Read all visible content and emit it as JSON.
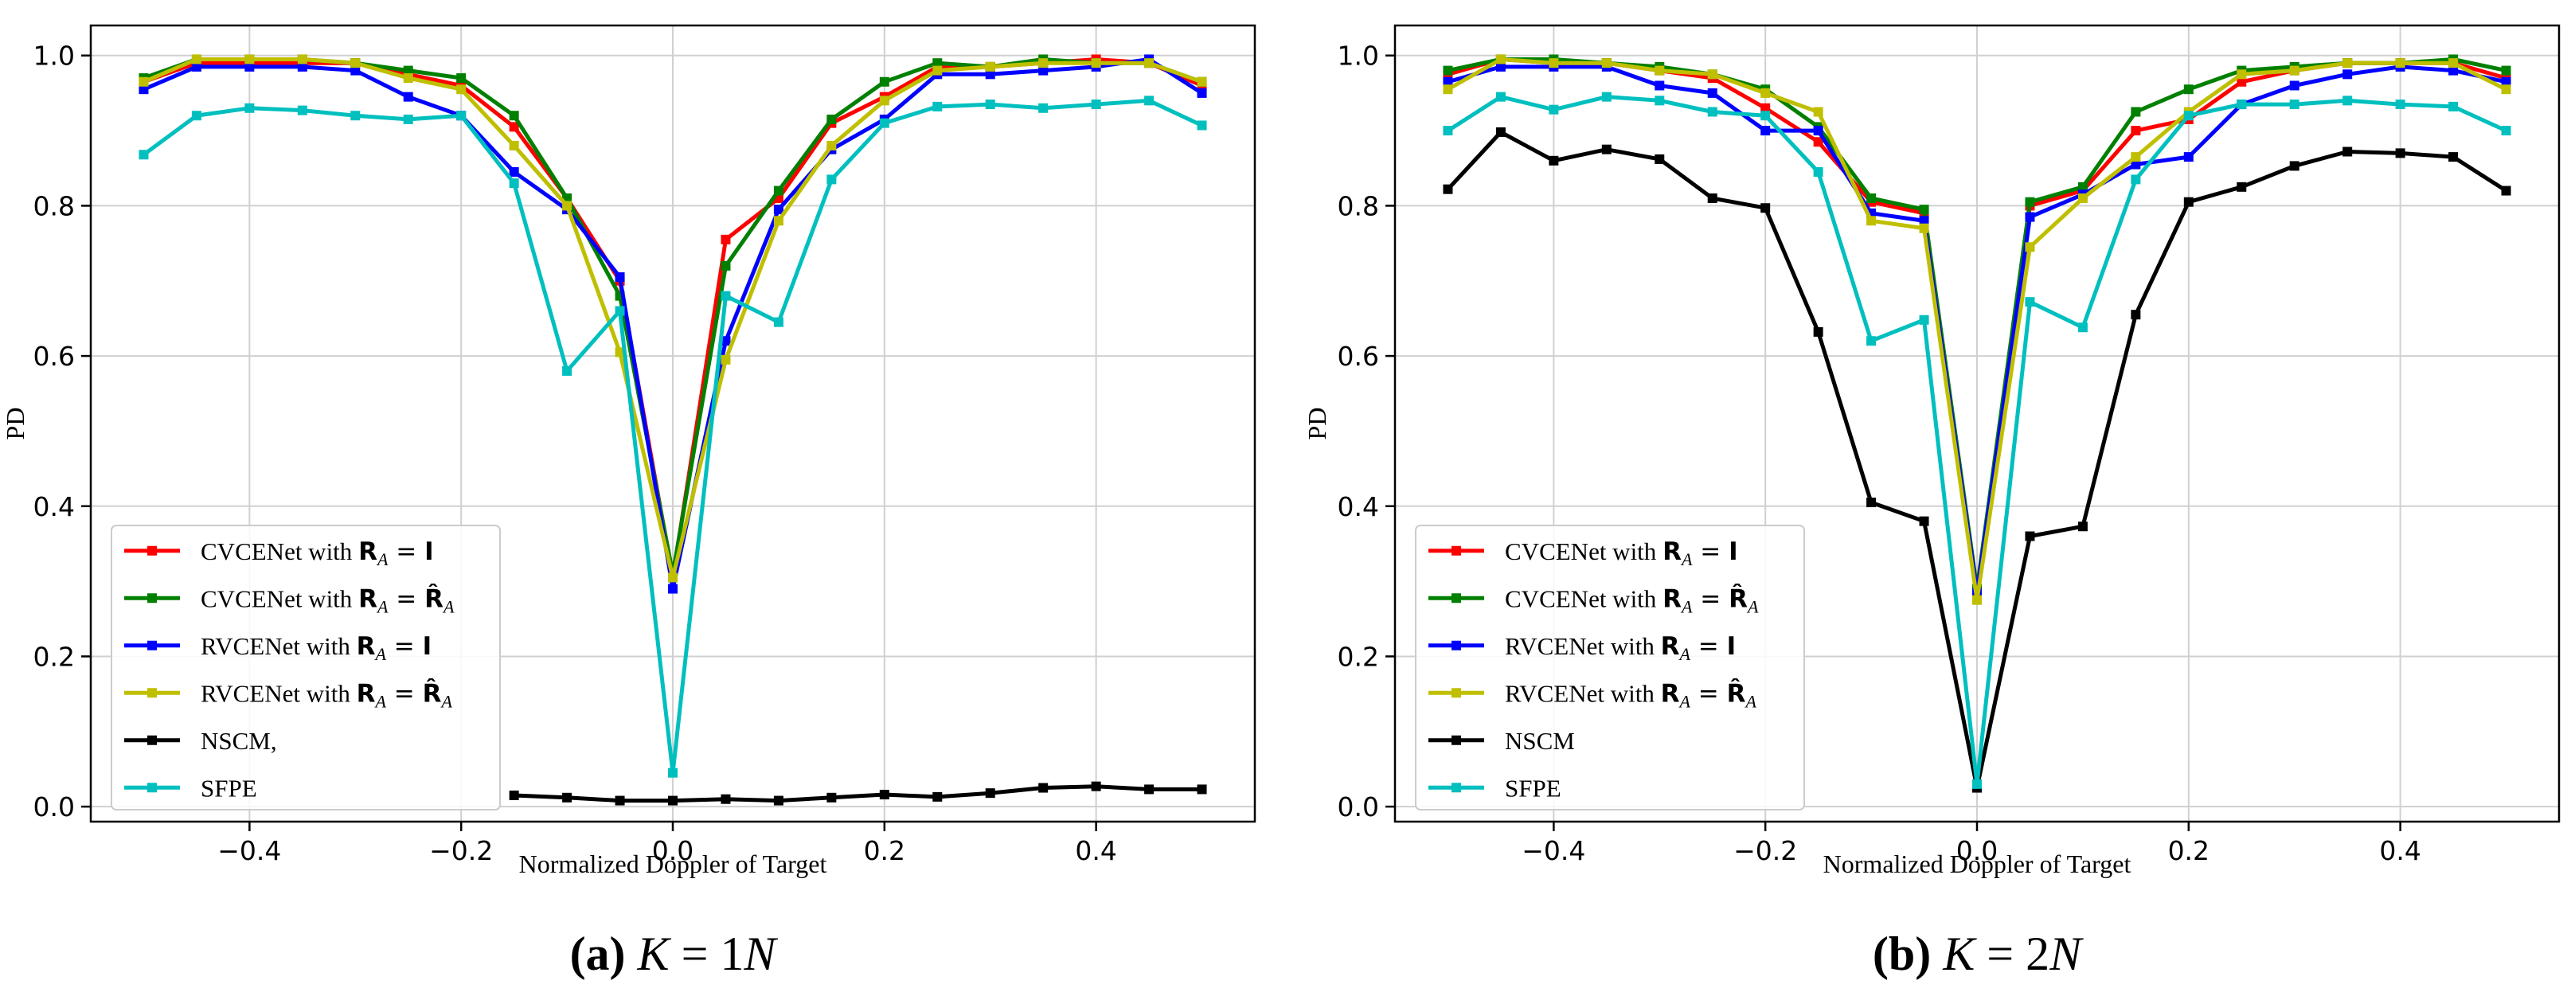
{
  "chart_data": [
    {
      "type": "line",
      "caption_letter": "(a)",
      "caption_text": "K = 1N",
      "xlabel": "Normalized Doppler of Target",
      "ylabel": "PD",
      "xlim": [
        -0.55,
        0.55
      ],
      "ylim": [
        -0.02,
        1.04
      ],
      "xticks": [
        "−0.4",
        "−0.2",
        "0.0",
        "0.2",
        "0.4"
      ],
      "xtick_values": [
        -0.4,
        -0.2,
        0.0,
        0.2,
        0.4
      ],
      "yticks": [
        "0.0",
        "0.2",
        "0.4",
        "0.6",
        "0.8",
        "1.0"
      ],
      "ytick_values": [
        0.0,
        0.2,
        0.4,
        0.6,
        0.8,
        1.0
      ],
      "grid": true,
      "legend_position": "lower-left",
      "x": [
        -0.5,
        -0.45,
        -0.4,
        -0.35,
        -0.3,
        -0.25,
        -0.2,
        -0.15,
        -0.1,
        -0.05,
        0.0,
        0.05,
        0.1,
        0.15,
        0.2,
        0.25,
        0.3,
        0.35,
        0.4,
        0.45,
        0.5
      ],
      "series": [
        {
          "name_prefix": "CVCENet with ",
          "name_math": "R_A = I",
          "color": "#ff0000",
          "legend": true,
          "values": [
            0.965,
            0.99,
            0.99,
            0.99,
            0.99,
            0.975,
            0.96,
            0.905,
            0.81,
            0.7,
            0.305,
            0.755,
            0.81,
            0.91,
            0.945,
            0.985,
            0.985,
            0.99,
            0.995,
            0.99,
            0.96
          ]
        },
        {
          "name_prefix": "CVCENet with ",
          "name_math": "R_A = R̂_A",
          "color": "#008000",
          "legend": true,
          "values": [
            0.97,
            0.995,
            0.995,
            0.995,
            0.99,
            0.98,
            0.97,
            0.92,
            0.81,
            0.68,
            0.31,
            0.72,
            0.82,
            0.915,
            0.965,
            0.99,
            0.985,
            0.995,
            0.99,
            0.99,
            0.965
          ]
        },
        {
          "name_prefix": "RVCENet with ",
          "name_math": "R_A = I",
          "color": "#0000ff",
          "legend": true,
          "values": [
            0.955,
            0.985,
            0.985,
            0.985,
            0.98,
            0.945,
            0.92,
            0.845,
            0.795,
            0.705,
            0.29,
            0.62,
            0.795,
            0.875,
            0.915,
            0.975,
            0.975,
            0.98,
            0.985,
            0.995,
            0.95
          ]
        },
        {
          "name_prefix": "RVCENet with ",
          "name_math": "R_A = R̂_A",
          "color": "#bfbf00",
          "legend": true,
          "values": [
            0.965,
            0.995,
            0.995,
            0.995,
            0.99,
            0.97,
            0.955,
            0.88,
            0.8,
            0.605,
            0.305,
            0.595,
            0.78,
            0.88,
            0.94,
            0.98,
            0.985,
            0.99,
            0.99,
            0.99,
            0.965
          ]
        },
        {
          "name_prefix": "NSCM,",
          "name_math": "",
          "color": "#000000",
          "legend": true,
          "values": [
            null,
            null,
            null,
            null,
            null,
            null,
            null,
            0.015,
            0.012,
            0.008,
            0.008,
            0.01,
            0.008,
            0.012,
            0.016,
            0.013,
            0.018,
            0.025,
            0.027,
            0.023,
            0.023
          ]
        },
        {
          "name_prefix": "SFPE",
          "name_math": "",
          "color": "#00bfbf",
          "legend": true,
          "values": [
            0.868,
            0.92,
            0.93,
            0.927,
            0.92,
            0.915,
            0.92,
            0.83,
            0.58,
            0.66,
            0.045,
            0.68,
            0.645,
            0.835,
            0.91,
            0.932,
            0.935,
            0.93,
            0.935,
            0.94,
            0.907
          ]
        }
      ]
    },
    {
      "type": "line",
      "caption_letter": "(b)",
      "caption_text": "K = 2N",
      "xlabel": "Normalized Doppler of Target",
      "ylabel": "PD",
      "xlim": [
        -0.55,
        0.55
      ],
      "ylim": [
        -0.02,
        1.04
      ],
      "xticks": [
        "−0.4",
        "−0.2",
        "0.0",
        "0.2",
        "0.4"
      ],
      "xtick_values": [
        -0.4,
        -0.2,
        0.0,
        0.2,
        0.4
      ],
      "yticks": [
        "0.0",
        "0.2",
        "0.4",
        "0.6",
        "0.8",
        "1.0"
      ],
      "ytick_values": [
        0.0,
        0.2,
        0.4,
        0.6,
        0.8,
        1.0
      ],
      "grid": true,
      "legend_position": "lower-left",
      "x": [
        -0.5,
        -0.45,
        -0.4,
        -0.35,
        -0.3,
        -0.25,
        -0.2,
        -0.15,
        -0.1,
        -0.05,
        0.0,
        0.05,
        0.1,
        0.15,
        0.2,
        0.25,
        0.3,
        0.35,
        0.4,
        0.45,
        0.5
      ],
      "series": [
        {
          "name_prefix": "CVCENet with ",
          "name_math": "R_A = I",
          "color": "#ff0000",
          "legend": true,
          "values": [
            0.975,
            0.995,
            0.99,
            0.99,
            0.98,
            0.97,
            0.93,
            0.885,
            0.805,
            0.79,
            0.285,
            0.8,
            0.82,
            0.9,
            0.915,
            0.965,
            0.98,
            0.99,
            0.99,
            0.99,
            0.97
          ]
        },
        {
          "name_prefix": "CVCENet with ",
          "name_math": "R_A = R̂_A",
          "color": "#008000",
          "legend": true,
          "values": [
            0.98,
            0.995,
            0.995,
            0.99,
            0.985,
            0.975,
            0.955,
            0.905,
            0.81,
            0.795,
            0.29,
            0.805,
            0.825,
            0.925,
            0.955,
            0.98,
            0.985,
            0.99,
            0.99,
            0.995,
            0.98
          ]
        },
        {
          "name_prefix": "RVCENet with ",
          "name_math": "R_A = I",
          "color": "#0000ff",
          "legend": true,
          "values": [
            0.965,
            0.985,
            0.985,
            0.985,
            0.96,
            0.95,
            0.9,
            0.9,
            0.79,
            0.78,
            0.285,
            0.785,
            0.815,
            0.855,
            0.865,
            0.935,
            0.96,
            0.975,
            0.985,
            0.98,
            0.965
          ]
        },
        {
          "name_prefix": "RVCENet with ",
          "name_math": "R_A = R̂_A",
          "color": "#bfbf00",
          "legend": true,
          "values": [
            0.955,
            0.995,
            0.99,
            0.99,
            0.98,
            0.975,
            0.95,
            0.925,
            0.78,
            0.77,
            0.275,
            0.745,
            0.81,
            0.865,
            0.925,
            0.975,
            0.98,
            0.99,
            0.99,
            0.99,
            0.955
          ]
        },
        {
          "name_prefix": "NSCM",
          "name_math": "",
          "color": "#000000",
          "legend": true,
          "values": [
            0.822,
            0.898,
            0.86,
            0.875,
            0.862,
            0.81,
            0.797,
            0.632,
            0.405,
            0.38,
            0.025,
            0.36,
            0.373,
            0.655,
            0.805,
            0.825,
            0.853,
            0.872,
            0.87,
            0.865,
            0.82
          ]
        },
        {
          "name_prefix": "SFPE",
          "name_math": "",
          "color": "#00bfbf",
          "legend": true,
          "values": [
            0.9,
            0.945,
            0.928,
            0.945,
            0.94,
            0.925,
            0.92,
            0.845,
            0.62,
            0.648,
            0.03,
            0.672,
            0.638,
            0.835,
            0.92,
            0.935,
            0.935,
            0.94,
            0.935,
            0.932,
            0.9
          ]
        }
      ]
    }
  ]
}
